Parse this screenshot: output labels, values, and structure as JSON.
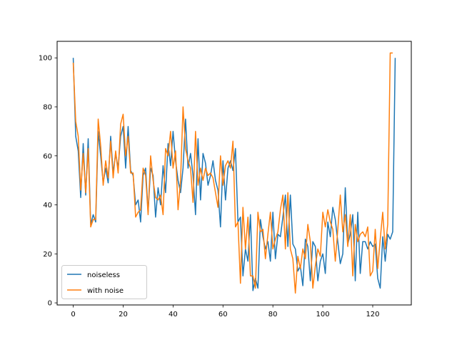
{
  "chart_data": {
    "type": "line",
    "title": "",
    "xlabel": "",
    "ylabel": "",
    "xlim": [
      -6.45,
      135.45
    ],
    "ylim": [
      -0.85,
      106.75
    ],
    "xticks": [
      0,
      20,
      40,
      60,
      80,
      100,
      120
    ],
    "yticks": [
      0,
      20,
      40,
      60,
      80,
      100
    ],
    "grid": false,
    "legend_position": "lower-left",
    "series": [
      {
        "name": "noiseless",
        "color": "#1f77b4",
        "y": [
          100,
          68,
          62,
          43,
          65,
          44,
          67,
          32,
          36,
          33,
          70,
          60,
          49,
          55,
          49,
          68,
          53,
          61,
          55,
          68,
          72,
          55,
          72,
          54,
          52,
          40,
          42,
          33,
          52,
          55,
          37,
          55,
          52,
          35,
          47,
          40,
          56,
          45,
          65,
          56,
          70,
          58,
          50,
          45,
          55,
          75,
          55,
          61,
          52,
          36,
          67,
          42,
          61,
          57,
          48,
          52,
          58,
          50,
          46,
          31,
          58,
          42,
          55,
          58,
          54,
          63,
          33,
          35,
          11,
          22,
          17,
          36,
          5,
          10,
          6,
          34,
          27,
          22,
          25,
          17,
          37,
          18,
          28,
          27,
          35,
          44,
          23,
          44,
          24,
          22,
          13,
          15,
          7,
          26,
          23,
          9,
          25,
          23,
          9,
          17,
          20,
          12,
          33,
          27,
          39,
          34,
          25,
          16,
          20,
          47,
          24,
          28,
          36,
          9,
          37,
          12,
          25,
          25,
          22,
          25,
          23,
          24,
          10,
          6,
          27,
          17,
          28,
          26,
          29,
          100
        ]
      },
      {
        "name": "with noise",
        "color": "#ff7f0e",
        "y": [
          98,
          74,
          68,
          46,
          61,
          45,
          63,
          31,
          34,
          34,
          75,
          64,
          48,
          58,
          51,
          66,
          51,
          62,
          53,
          73,
          77,
          60,
          68,
          53,
          53,
          35,
          37,
          38,
          55,
          52,
          36,
          60,
          50,
          43,
          42,
          44,
          36,
          63,
          60,
          70,
          55,
          62,
          38,
          50,
          80,
          63,
          58,
          55,
          41,
          70,
          48,
          55,
          50,
          55,
          52,
          53,
          51,
          45,
          39,
          60,
          48,
          56,
          58,
          55,
          66,
          31,
          33,
          8,
          39,
          22,
          35,
          11,
          11,
          6,
          37,
          29,
          30,
          18,
          28,
          37,
          22,
          26,
          29,
          38,
          44,
          22,
          45,
          22,
          18,
          4,
          19,
          14,
          22,
          18,
          32,
          25,
          6,
          15,
          22,
          19,
          37,
          31,
          38,
          33,
          30,
          17,
          30,
          44,
          29,
          36,
          23,
          36,
          11,
          32,
          25,
          28,
          29,
          27,
          31,
          11,
          13,
          30,
          14,
          26,
          37,
          22,
          32,
          102,
          102
        ]
      }
    ]
  }
}
